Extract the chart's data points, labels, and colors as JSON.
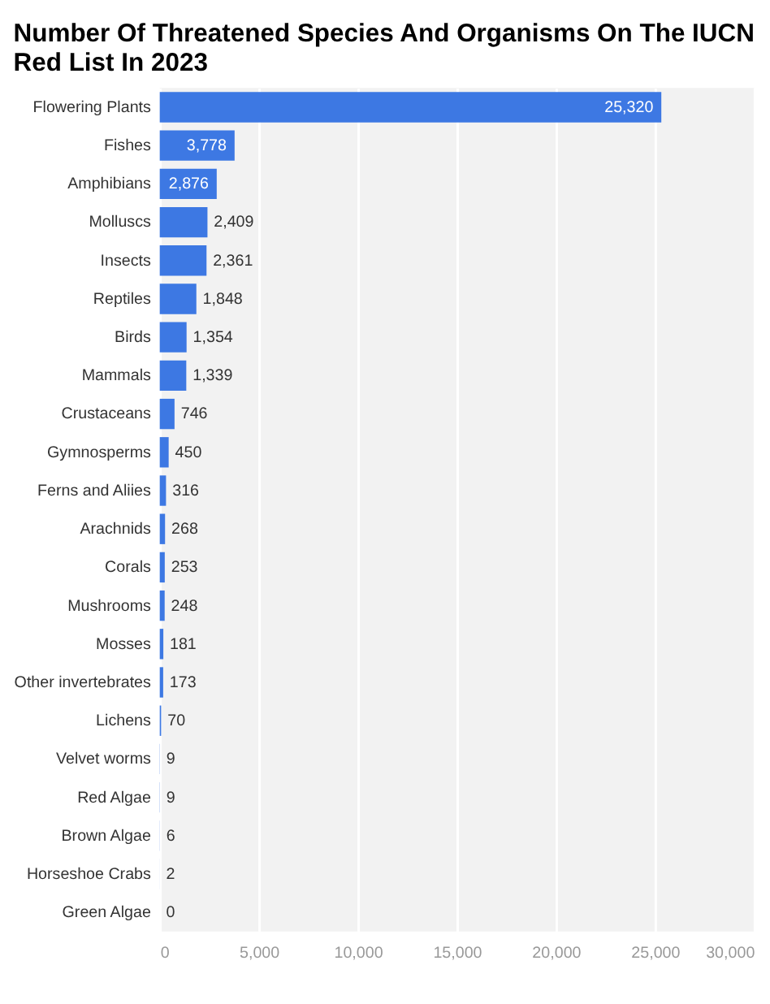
{
  "chart_data": {
    "type": "bar",
    "orientation": "horizontal",
    "title": "Number Of Threatened Species And Organisms On The IUCN Red List In 2023",
    "categories": [
      "Flowering Plants",
      "Fishes",
      "Amphibians",
      "Molluscs",
      "Insects",
      "Reptiles",
      "Birds",
      "Mammals",
      "Crustaceans",
      "Gymnosperms",
      "Ferns and Aliies",
      "Arachnids",
      "Corals",
      "Mushrooms",
      "Mosses",
      "Other invertebrates",
      "Lichens",
      "Velvet worms",
      "Red Algae",
      "Brown Algae",
      "Horseshoe Crabs",
      "Green Algae"
    ],
    "values": [
      25320,
      3778,
      2876,
      2409,
      2361,
      1848,
      1354,
      1339,
      746,
      450,
      316,
      268,
      253,
      248,
      181,
      173,
      70,
      9,
      9,
      6,
      2,
      0
    ],
    "value_labels": [
      "25,320",
      "3,778",
      "2,876",
      "2,409",
      "2,361",
      "1,848",
      "1,354",
      "1,339",
      "746",
      "450",
      "316",
      "268",
      "253",
      "248",
      "181",
      "173",
      "70",
      "9",
      "9",
      "6",
      "2",
      "0"
    ],
    "color": "#3d78e3",
    "grid": "x",
    "xlim": [
      0,
      30000
    ],
    "xticks": [
      0,
      {
        "value": 5000,
        "label": "5,000"
      },
      {
        "value": 10000,
        "label": "10,000"
      },
      {
        "value": 15000,
        "label": "15,000"
      },
      {
        "value": 20000,
        "label": "20,000"
      },
      {
        "value": 25000,
        "label": "25,000"
      },
      {
        "value": 30000,
        "label": "30,000"
      }
    ]
  }
}
